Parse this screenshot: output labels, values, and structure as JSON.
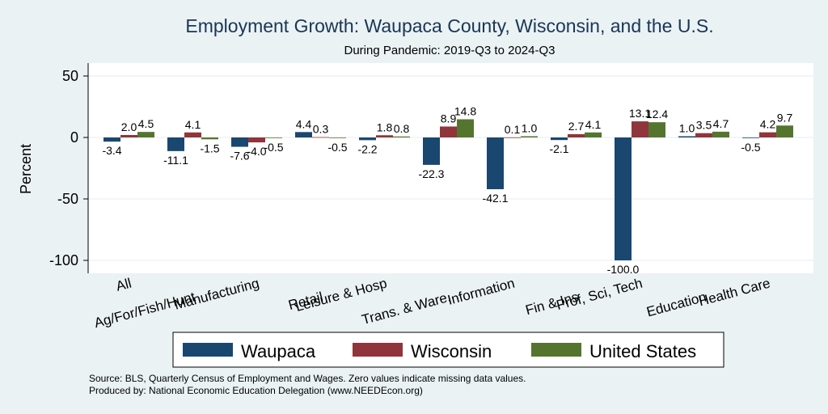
{
  "chart_data": {
    "type": "bar",
    "title": "Employment Growth: Waupaca County, Wisconsin, and the U.S.",
    "subtitle": "During Pandemic: 2019-Q3 to 2024-Q3",
    "xlabel": "",
    "ylabel": "Percent",
    "ylim": [
      -100,
      50
    ],
    "yticks": [
      50,
      0,
      -50,
      -100
    ],
    "ytick_labels": [
      "50",
      "0",
      "-50",
      "-100"
    ],
    "grid": true,
    "categories": [
      "All",
      "Ag/For/Fish/Hunt",
      "Manufacturing",
      "Retail",
      "Leisure & Hosp",
      "Trans. & Ware.",
      "Information",
      "Fin & Ins",
      "Prof, Sci, Tech",
      "Education",
      "Health Care"
    ],
    "series": [
      {
        "name": "Waupaca",
        "color": "#1a476f",
        "values": [
          -3.4,
          -11.1,
          -7.6,
          4.4,
          -2.2,
          -22.3,
          -42.1,
          -2.1,
          -100.0,
          1.0,
          -0.5
        ],
        "labels": [
          "-3.4",
          "-11.1",
          "-7.6",
          "4.4",
          "-2.2",
          "-22.3",
          "-42.1",
          "-2.1",
          "-100.0",
          "1.0",
          "-0.5"
        ]
      },
      {
        "name": "Wisconsin",
        "color": "#90353b",
        "values": [
          2.0,
          4.1,
          -4.0,
          0.3,
          1.8,
          8.9,
          0.1,
          2.7,
          13.1,
          3.5,
          4.2
        ],
        "labels": [
          "2.0",
          "4.1",
          "-4.0",
          "0.3",
          "1.8",
          "8.9",
          "0.1",
          "2.7",
          "13.1",
          "3.5",
          "4.2"
        ]
      },
      {
        "name": "United States",
        "color": "#55752f",
        "values": [
          4.5,
          -1.5,
          -0.5,
          -0.5,
          0.8,
          14.8,
          1.0,
          4.1,
          12.4,
          4.7,
          9.7
        ],
        "labels": [
          "4.5",
          "-1.5",
          "-0.5",
          "-0.5",
          "0.8",
          "14.8",
          "1.0",
          "4.1",
          "12.4",
          "4.7",
          "9.7"
        ]
      }
    ],
    "legend": {
      "position": "bottom",
      "entries": [
        "Waupaca",
        "Wisconsin",
        "United States"
      ]
    },
    "notes": [
      "Source: BLS, Quarterly Census of Employment and Wages. Zero values indicate missing data values.",
      "Produced by: National Economic Education Delegation (www.NEEDEcon.org)"
    ]
  },
  "colors": {
    "background": "#eaf2f3",
    "plot_background": "#ffffff",
    "title": "#1a3556",
    "grid": "#e6eef0"
  }
}
